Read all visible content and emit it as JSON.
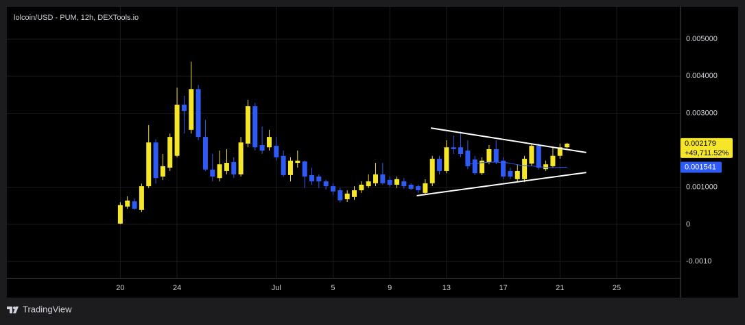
{
  "chart_data": {
    "type": "candlestick",
    "title": "lolcoin/USD - PUM, 12h, DEXTools.io",
    "x": [
      20,
      20.5,
      21,
      21.5,
      22,
      22.5,
      23,
      23.5,
      24,
      24.5,
      25,
      25.5,
      26,
      26.5,
      27,
      27.5,
      28,
      28.5,
      29,
      29.5,
      30,
      30.5,
      31,
      31.5,
      32,
      32.5,
      33,
      33.5,
      34,
      34.5,
      35,
      35.5,
      36,
      36.5,
      37,
      37.5,
      38,
      38.5,
      39,
      39.5,
      40,
      40.5,
      41,
      41.5,
      42,
      42.5,
      43,
      43.5,
      44,
      44.5,
      45,
      45.5,
      46,
      46.5,
      47,
      47.5,
      48,
      48.5,
      49,
      49.5,
      50,
      50.5,
      51,
      51.5
    ],
    "open": [
      2e-05,
      0.00048,
      0.00062,
      0.00039,
      0.00103,
      0.00221,
      0.00129,
      0.00153,
      0.00185,
      0.00323,
      0.00255,
      0.00365,
      0.00236,
      0.00148,
      0.00125,
      0.00144,
      0.00168,
      0.00135,
      0.00218,
      0.00319,
      0.00214,
      0.00208,
      0.00212,
      0.00185,
      0.00133,
      0.00166,
      0.0017,
      0.00133,
      0.00129,
      0.00116,
      0.00103,
      0.00092,
      0.00068,
      0.00074,
      0.00092,
      0.00103,
      0.00111,
      0.00135,
      0.0012,
      0.00107,
      0.00116,
      0.00107,
      0.00103,
      0.00085,
      0.00111,
      0.00177,
      0.00144,
      0.00208,
      0.00208,
      0.00199,
      0.00175,
      0.00138,
      0.00168,
      0.00203,
      0.00172,
      0.00144,
      0.00122,
      0.00122,
      0.00164,
      0.00212,
      0.00149,
      0.00157,
      0.00185,
      0.00208
    ],
    "high": [
      0.0006,
      0.00076,
      0.0007,
      0.0011,
      0.00268,
      0.0023,
      0.0019,
      0.00245,
      0.00369,
      0.00347,
      0.00439,
      0.00376,
      0.00282,
      0.0019,
      0.00199,
      0.00203,
      0.00181,
      0.00236,
      0.00336,
      0.00328,
      0.00264,
      0.00255,
      0.00236,
      0.00199,
      0.00181,
      0.00199,
      0.00172,
      0.00153,
      0.00135,
      0.0012,
      0.00111,
      0.00098,
      0.00092,
      0.00103,
      0.00116,
      0.00135,
      0.00166,
      0.00166,
      0.00129,
      0.00129,
      0.00125,
      0.00111,
      0.00107,
      0.00122,
      0.00185,
      0.00185,
      0.00227,
      0.0024,
      0.00251,
      0.00227,
      0.00185,
      0.00181,
      0.00214,
      0.00227,
      0.00181,
      0.00153,
      0.00162,
      0.00185,
      0.00218,
      0.00218,
      0.00172,
      0.00208,
      0.00218,
      0.0022
    ],
    "low": [
      1e-05,
      0.00042,
      0.0004,
      0.00033,
      0.00098,
      0.0011,
      0.0012,
      0.00144,
      0.00181,
      0.00245,
      0.00245,
      0.00227,
      0.00144,
      0.00116,
      0.00116,
      0.00135,
      0.00125,
      0.00129,
      0.00208,
      0.00199,
      0.0019,
      0.00199,
      0.00172,
      0.00129,
      0.00116,
      0.00153,
      0.00098,
      0.00107,
      0.00098,
      0.00094,
      0.00079,
      0.00059,
      0.00061,
      0.00066,
      0.00085,
      0.00098,
      0.00103,
      0.00107,
      0.00101,
      0.00098,
      0.00096,
      0.00092,
      0.00085,
      0.00079,
      0.00103,
      0.00135,
      0.00138,
      0.0019,
      0.00181,
      0.00149,
      0.00133,
      0.00133,
      0.00162,
      0.00162,
      0.00122,
      0.00122,
      0.00116,
      0.00114,
      0.00157,
      0.00148,
      0.00144,
      0.00153,
      0.00177,
      0.00205
    ],
    "close": [
      0.00052,
      0.00064,
      0.00042,
      0.00103,
      0.00221,
      0.00125,
      0.00157,
      0.00236,
      0.00323,
      0.00306,
      0.00365,
      0.00236,
      0.00148,
      0.00129,
      0.00162,
      0.00166,
      0.00135,
      0.00221,
      0.00319,
      0.00208,
      0.00199,
      0.00236,
      0.00181,
      0.00133,
      0.00172,
      0.00172,
      0.00129,
      0.00116,
      0.00116,
      0.00103,
      0.00089,
      0.00065,
      0.00083,
      0.00092,
      0.00107,
      0.00116,
      0.00135,
      0.00111,
      0.00107,
      0.00122,
      0.00103,
      0.00096,
      0.00092,
      0.00111,
      0.00177,
      0.00144,
      0.00208,
      0.00203,
      0.0019,
      0.00157,
      0.00138,
      0.00172,
      0.00203,
      0.00168,
      0.00129,
      0.00129,
      0.00144,
      0.00177,
      0.00212,
      0.00153,
      0.00162,
      0.00185,
      0.00208,
      0.002179
    ],
    "up_color": "#f5e62a",
    "down_color": "#2f5bf5",
    "change_label": "+49,711.52%",
    "indicator": {
      "color": "#2f5bf5",
      "x": [
        44.4,
        45.4,
        46.3,
        47.3,
        48.3,
        49.2,
        50.2,
        51.5
      ],
      "values": [
        0.00162,
        0.00166,
        0.00168,
        0.00166,
        0.00159,
        0.00157,
        0.00153,
        0.001541
      ]
    },
    "trendlines": [
      {
        "color": "#ffffff",
        "x": [
          41.9,
          52.85
        ],
        "values": [
          0.0026,
          0.00194
        ]
      },
      {
        "color": "#ffffff",
        "x": [
          40.9,
          52.85
        ],
        "values": [
          0.000775,
          0.0014
        ]
      }
    ],
    "xlim": [
      12,
      59.5
    ],
    "xticks": [
      20,
      24,
      {
        "value": 31,
        "label": "Jul"
      },
      {
        "value": 35,
        "label": "5"
      },
      {
        "value": 39,
        "label": "9"
      },
      {
        "value": 43,
        "label": "13"
      },
      {
        "value": 47,
        "label": "17"
      },
      {
        "value": 51,
        "label": "21"
      },
      {
        "value": 55,
        "label": "25"
      }
    ],
    "ylim": [
      -0.00146,
      0.00587
    ],
    "yticks": [
      {
        "value": 0.005,
        "label": "0.005000"
      },
      {
        "value": 0.004,
        "label": "0.004000"
      },
      {
        "value": 0.003,
        "label": "0.003000"
      },
      {
        "value": 0.001,
        "label": "0.001000"
      },
      0,
      {
        "value": -0.001,
        "label": "-0.0010"
      }
    ],
    "grid": true
  },
  "footer": "TradingView"
}
